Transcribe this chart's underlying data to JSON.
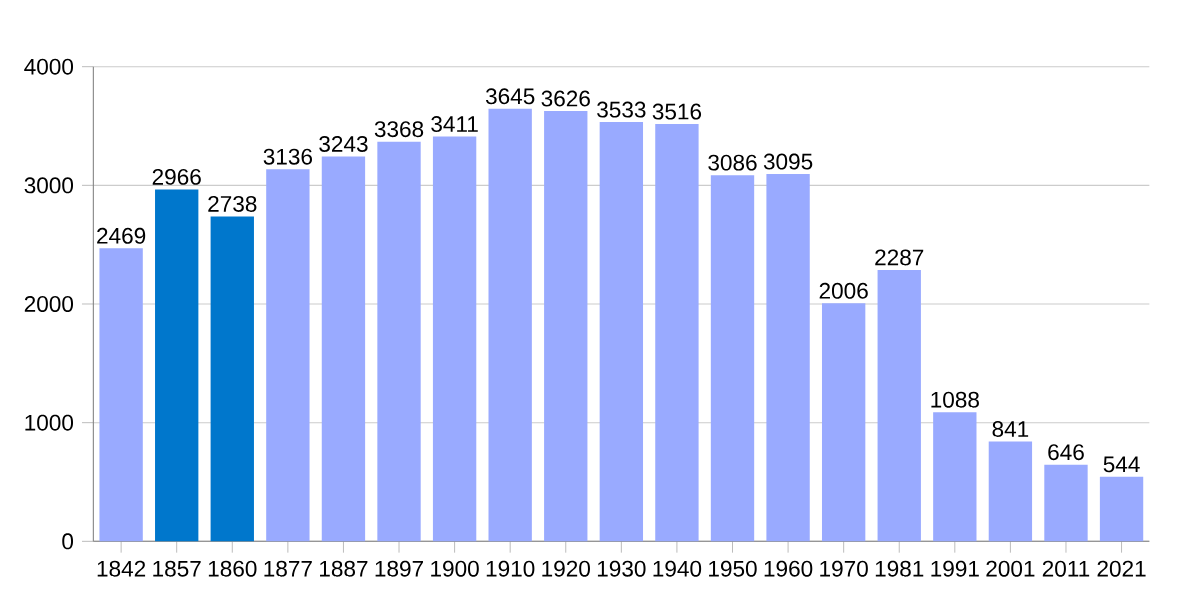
{
  "chart_data": {
    "type": "bar",
    "categories": [
      "1842",
      "1857",
      "1860",
      "1877",
      "1887",
      "1897",
      "1900",
      "1910",
      "1920",
      "1930",
      "1940",
      "1950",
      "1960",
      "1970",
      "1981",
      "1991",
      "2001",
      "2011",
      "2021"
    ],
    "values": [
      2469,
      2966,
      2738,
      3136,
      3243,
      3368,
      3411,
      3645,
      3626,
      3533,
      3516,
      3086,
      3095,
      2006,
      2287,
      1088,
      841,
      646,
      544
    ],
    "colors": [
      "#99aaff",
      "#0077cc",
      "#0077cc",
      "#99aaff",
      "#99aaff",
      "#99aaff",
      "#99aaff",
      "#99aaff",
      "#99aaff",
      "#99aaff",
      "#99aaff",
      "#99aaff",
      "#99aaff",
      "#99aaff",
      "#99aaff",
      "#99aaff",
      "#99aaff",
      "#99aaff",
      "#99aaff"
    ],
    "ylim": [
      0,
      4000
    ],
    "yticks": [
      0,
      1000,
      2000,
      3000,
      4000
    ],
    "grid": "y",
    "data_labels": true
  }
}
